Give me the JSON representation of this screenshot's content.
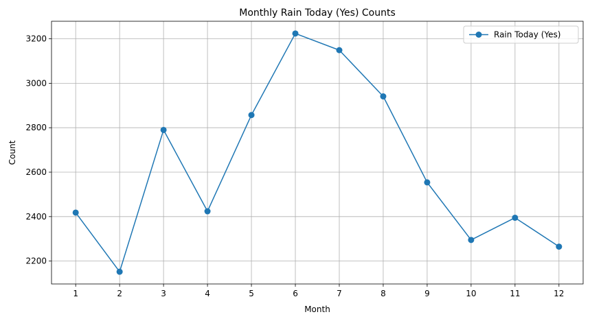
{
  "chart_data": {
    "type": "line",
    "title": "Monthly Rain Today (Yes) Counts",
    "xlabel": "Month",
    "ylabel": "Count",
    "x": [
      1,
      2,
      3,
      4,
      5,
      6,
      7,
      8,
      9,
      10,
      11,
      12
    ],
    "x_tick_labels": [
      "1",
      "2",
      "3",
      "4",
      "5",
      "6",
      "7",
      "8",
      "9",
      "10",
      "11",
      "12"
    ],
    "y_ticks": [
      2200,
      2400,
      2600,
      2800,
      3000,
      3200
    ],
    "y_tick_labels": [
      "2200",
      "2400",
      "2600",
      "2800",
      "3000",
      "3200"
    ],
    "xlim": [
      0.45,
      12.55
    ],
    "ylim": [
      2097,
      3279
    ],
    "grid": true,
    "legend_position": "top-right",
    "series": [
      {
        "name": "Rain Today (Yes)",
        "marker": "circle",
        "color": "#1f77b4",
        "values": [
          2418,
          2152,
          2790,
          2424,
          2857,
          3224,
          3149,
          2941,
          2554,
          2295,
          2395,
          2265
        ]
      }
    ]
  }
}
